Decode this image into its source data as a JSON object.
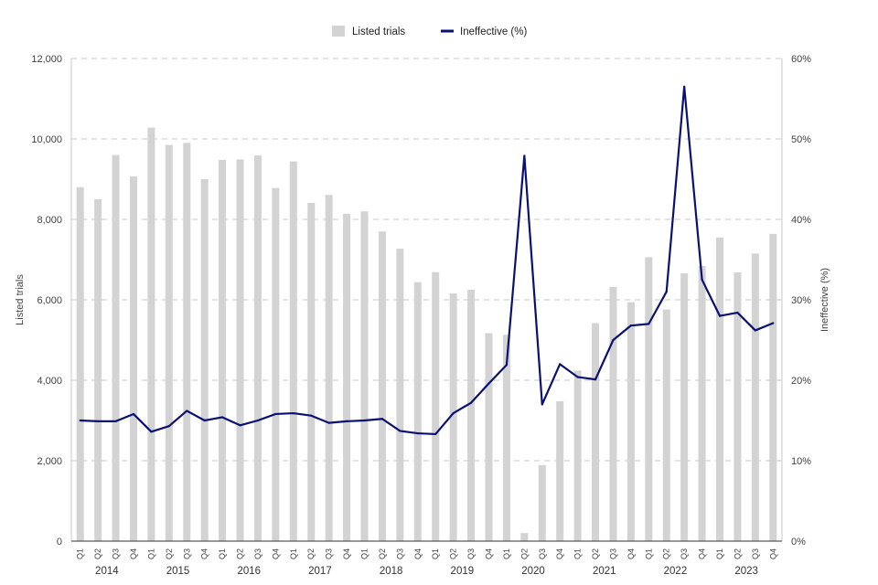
{
  "colors": {
    "bars": "#d3d3d3",
    "line": "#0a1172",
    "grid": "#c8c8c8",
    "axis": "#333333"
  },
  "chart_data": {
    "type": "bar",
    "legend": {
      "position": "top",
      "items": [
        {
          "label": "Listed trials",
          "marker": "square"
        },
        {
          "label": "Ineffective (%)",
          "marker": "line"
        }
      ]
    },
    "ylabel": "Listed trials",
    "y2label": "Ineffective (%)",
    "ylim": [
      0,
      12000
    ],
    "y2lim": [
      0,
      60
    ],
    "y_ticks": [
      "0",
      "2,000",
      "4,000",
      "6,000",
      "8,000",
      "10,000",
      "12,000"
    ],
    "y2_ticks": [
      "0%",
      "10%",
      "20%",
      "30%",
      "40%",
      "50%",
      "60%"
    ],
    "grid": true,
    "years": [
      "2014",
      "2015",
      "2016",
      "2017",
      "2018",
      "2019",
      "2020",
      "2021",
      "2022",
      "2023"
    ],
    "categories": [
      "Q1",
      "Q2",
      "Q3",
      "Q4",
      "Q1",
      "Q2",
      "Q3",
      "Q4",
      "Q1",
      "Q2",
      "Q3",
      "Q4",
      "Q1",
      "Q2",
      "Q3",
      "Q4",
      "Q1",
      "Q2",
      "Q3",
      "Q4",
      "Q1",
      "Q2",
      "Q3",
      "Q4",
      "Q1",
      "Q2",
      "Q3",
      "Q4",
      "Q1",
      "Q2",
      "Q3",
      "Q4",
      "Q1",
      "Q2",
      "Q3",
      "Q4",
      "Q1",
      "Q2",
      "Q3",
      "Q4"
    ],
    "series": [
      {
        "name": "Listed trials",
        "type": "bar",
        "axis": "left",
        "values": [
          8800,
          8500,
          9600,
          9070,
          10280,
          9850,
          9900,
          9000,
          9480,
          9490,
          9590,
          8780,
          9440,
          8410,
          8610,
          8140,
          8200,
          7700,
          7270,
          6440,
          6690,
          6160,
          6250,
          5170,
          5130,
          200,
          1890,
          3480,
          4240,
          5420,
          6320,
          5940,
          7060,
          5760,
          6660,
          6840,
          7550,
          6680,
          7150,
          7640
        ]
      },
      {
        "name": "Ineffective (%)",
        "type": "line",
        "axis": "right",
        "values": [
          15.0,
          14.9,
          14.9,
          15.8,
          13.6,
          14.3,
          16.2,
          15.0,
          15.4,
          14.4,
          15.0,
          15.8,
          15.9,
          15.6,
          14.7,
          14.9,
          15.0,
          15.2,
          13.7,
          13.4,
          13.3,
          15.9,
          17.2,
          19.6,
          21.9,
          47.9,
          17.0,
          22.0,
          20.4,
          20.1,
          25.0,
          26.8,
          27.0,
          31.0,
          56.5,
          32.5,
          28.0,
          28.4,
          26.2,
          27.1
        ]
      }
    ]
  }
}
